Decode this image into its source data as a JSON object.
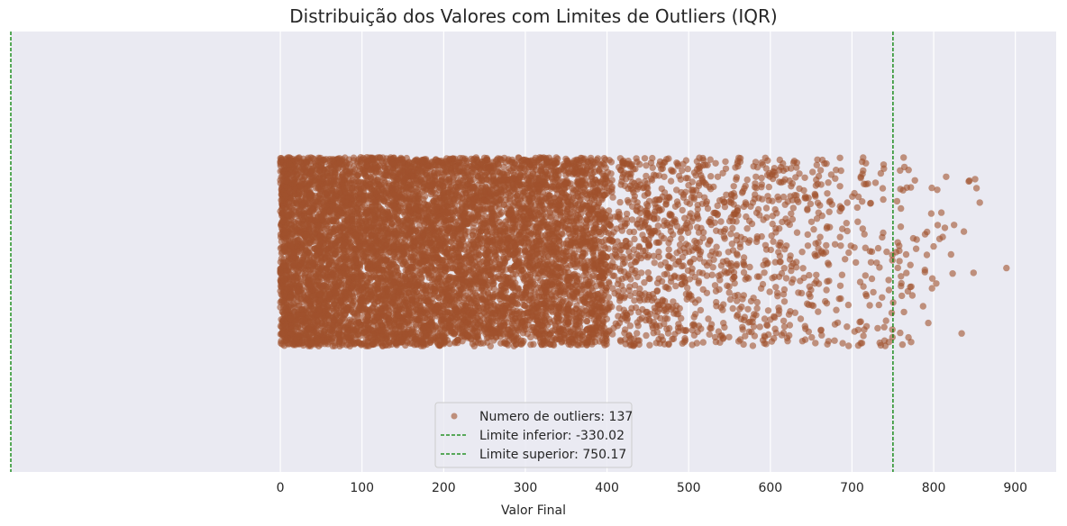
{
  "chart_data": {
    "type": "scatter",
    "subtype": "strip",
    "title": "Distribuição dos Valores com Limites de Outliers (IQR)",
    "xlabel": "Valor Final",
    "ylabel": "",
    "xlim": [
      -330.02,
      950
    ],
    "x_ticks": [
      0,
      100,
      200,
      300,
      400,
      500,
      600,
      700,
      800,
      900
    ],
    "x_tick_labels": [
      "0",
      "100",
      "200",
      "300",
      "400",
      "500",
      "600",
      "700",
      "800",
      "900"
    ],
    "grid": true,
    "grid_axis": "x",
    "point_color": "#a0522d",
    "point_alpha": 0.6,
    "jitter": 0.3,
    "points": {
      "distribution": "right-skewed",
      "min": 0,
      "max": 895,
      "dense_region": [
        0,
        400
      ],
      "sparse_region": [
        400,
        895
      ]
    },
    "outlier_count": 137,
    "lines": [
      {
        "name": "Limite inferior",
        "x": -330.02,
        "style": "dashed",
        "color": "#008000"
      },
      {
        "name": "Limite superior",
        "x": 750.17,
        "style": "dashed",
        "color": "#008000"
      }
    ],
    "legend": {
      "position": "lower center",
      "entries": [
        {
          "label": "Numero de outliers: 137",
          "marker": "point",
          "color": "#a0522d"
        },
        {
          "label": "Limite inferior: -330.02",
          "marker": "dashed-line",
          "color": "#008000"
        },
        {
          "label": "Limite superior: 750.17",
          "marker": "dashed-line",
          "color": "#008000"
        }
      ]
    },
    "background": "#eaeaf2",
    "grid_color": "#ffffff"
  }
}
